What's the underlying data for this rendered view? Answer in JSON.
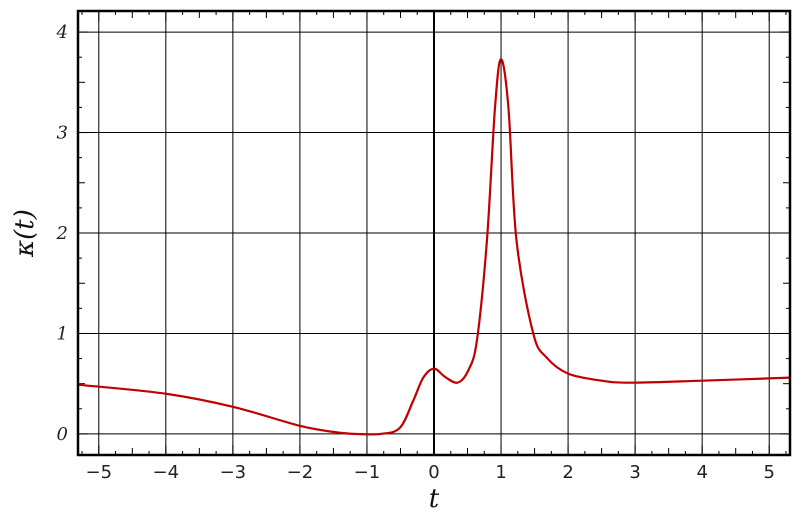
{
  "chart_data": {
    "type": "line",
    "title": "",
    "xlabel": "t",
    "ylabel": "κ(t)",
    "xlim": [
      -5.31,
      5.31
    ],
    "ylim": [
      -0.21,
      4.21
    ],
    "xticks": [
      -5,
      -4,
      -3,
      -2,
      -1,
      0,
      1,
      2,
      3,
      4,
      5
    ],
    "xtick_labels": [
      "−5",
      "−4",
      "−3",
      "−2",
      "−1",
      "0",
      "1",
      "2",
      "3",
      "4",
      "5"
    ],
    "yticks": [
      0,
      1,
      2,
      3,
      4
    ],
    "ytick_labels": [
      "0",
      "1",
      "2",
      "3",
      "4"
    ],
    "grid": true,
    "series": [
      {
        "color": "#c00000",
        "x": [
          -5.31,
          -4,
          -3,
          -2,
          -1.5,
          -1.2,
          -0.8,
          -0.51,
          -0.31,
          -0.16,
          0,
          0.16,
          0.35,
          0.51,
          0.64,
          0.79,
          0.91,
          1.0,
          1.11,
          1.23,
          1.48,
          1.68,
          2.0,
          2.5,
          2.93,
          4,
          5.31
        ],
        "y": [
          0.49,
          0.4,
          0.27,
          0.08,
          0.02,
          0.0,
          0.0,
          0.06,
          0.33,
          0.56,
          0.65,
          0.57,
          0.51,
          0.63,
          0.93,
          1.93,
          3.25,
          3.73,
          3.25,
          1.93,
          1.0,
          0.76,
          0.6,
          0.53,
          0.51,
          0.53,
          0.56
        ]
      }
    ]
  }
}
